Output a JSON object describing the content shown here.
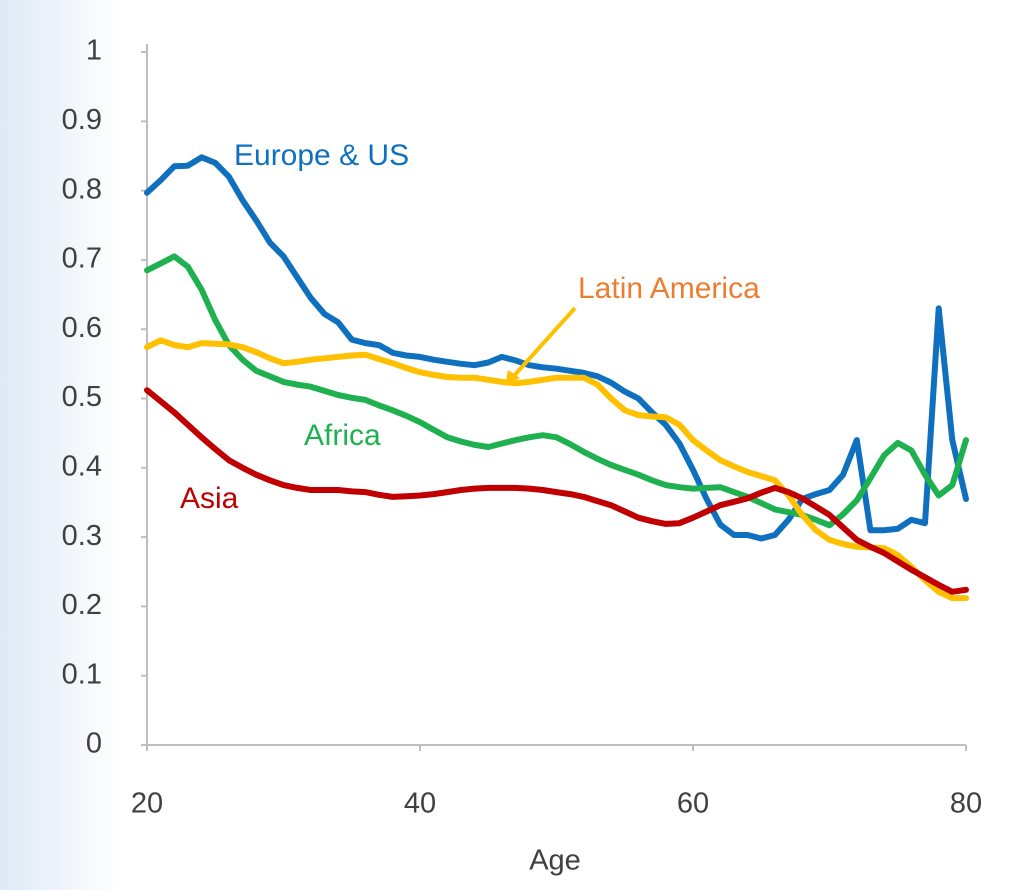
{
  "chart_data": {
    "type": "line",
    "x_label": "Age",
    "x": [
      20,
      21,
      22,
      23,
      24,
      25,
      26,
      27,
      28,
      29,
      30,
      31,
      32,
      33,
      34,
      35,
      36,
      37,
      38,
      39,
      40,
      41,
      42,
      43,
      44,
      45,
      46,
      47,
      48,
      49,
      50,
      51,
      52,
      53,
      54,
      55,
      56,
      57,
      58,
      59,
      60,
      61,
      62,
      63,
      64,
      65,
      66,
      67,
      68,
      69,
      70,
      71,
      72,
      73,
      74,
      75,
      76,
      77,
      78,
      79,
      80
    ],
    "xlim": [
      20,
      80
    ],
    "xticks": [
      20,
      40,
      60,
      80
    ],
    "ylim": [
      0,
      1
    ],
    "yticks": [
      0,
      0.1,
      0.2,
      0.3,
      0.4,
      0.5,
      0.6,
      0.7,
      0.8,
      0.9,
      1
    ],
    "series": [
      {
        "name": "Europe & US",
        "color": "#0f70c0",
        "values": [
          0.797,
          0.815,
          0.835,
          0.836,
          0.848,
          0.84,
          0.82,
          0.786,
          0.757,
          0.725,
          0.705,
          0.675,
          0.645,
          0.622,
          0.61,
          0.585,
          0.58,
          0.577,
          0.566,
          0.562,
          0.56,
          0.556,
          0.553,
          0.55,
          0.548,
          0.552,
          0.56,
          0.555,
          0.548,
          0.545,
          0.543,
          0.54,
          0.537,
          0.532,
          0.523,
          0.51,
          0.5,
          0.48,
          0.462,
          0.435,
          0.397,
          0.355,
          0.318,
          0.303,
          0.303,
          0.298,
          0.303,
          0.325,
          0.355,
          0.362,
          0.368,
          0.39,
          0.44,
          0.31,
          0.31,
          0.312,
          0.325,
          0.32,
          0.63,
          0.44,
          0.355
        ]
      },
      {
        "name": "Africa",
        "color": "#1fb150",
        "values": [
          0.685,
          0.695,
          0.705,
          0.69,
          0.657,
          0.613,
          0.577,
          0.556,
          0.54,
          0.532,
          0.524,
          0.52,
          0.517,
          0.511,
          0.505,
          0.501,
          0.498,
          0.49,
          0.483,
          0.475,
          0.466,
          0.455,
          0.444,
          0.438,
          0.433,
          0.43,
          0.435,
          0.44,
          0.444,
          0.447,
          0.444,
          0.434,
          0.423,
          0.413,
          0.404,
          0.397,
          0.39,
          0.382,
          0.375,
          0.372,
          0.37,
          0.371,
          0.372,
          0.365,
          0.358,
          0.349,
          0.34,
          0.336,
          0.332,
          0.325,
          0.317,
          0.333,
          0.353,
          0.385,
          0.418,
          0.436,
          0.425,
          0.39,
          0.36,
          0.375,
          0.44
        ]
      },
      {
        "name": "Latin America",
        "color": "#ffc000",
        "label_color": "#ed7d31",
        "values": [
          0.574,
          0.584,
          0.577,
          0.574,
          0.58,
          0.579,
          0.578,
          0.574,
          0.567,
          0.558,
          0.551,
          0.553,
          0.556,
          0.558,
          0.56,
          0.562,
          0.563,
          0.557,
          0.551,
          0.544,
          0.538,
          0.534,
          0.531,
          0.53,
          0.53,
          0.527,
          0.524,
          0.522,
          0.524,
          0.527,
          0.53,
          0.53,
          0.53,
          0.52,
          0.5,
          0.483,
          0.476,
          0.474,
          0.473,
          0.462,
          0.44,
          0.425,
          0.411,
          0.402,
          0.394,
          0.388,
          0.382,
          0.36,
          0.332,
          0.31,
          0.296,
          0.29,
          0.286,
          0.285,
          0.284,
          0.274,
          0.257,
          0.238,
          0.221,
          0.212,
          0.212
        ]
      },
      {
        "name": "Asia",
        "color": "#c00000",
        "values": [
          0.512,
          0.496,
          0.48,
          0.462,
          0.444,
          0.427,
          0.411,
          0.4,
          0.39,
          0.382,
          0.375,
          0.371,
          0.368,
          0.368,
          0.368,
          0.366,
          0.365,
          0.361,
          0.358,
          0.359,
          0.36,
          0.362,
          0.365,
          0.368,
          0.37,
          0.371,
          0.371,
          0.371,
          0.37,
          0.368,
          0.365,
          0.362,
          0.358,
          0.352,
          0.346,
          0.337,
          0.328,
          0.323,
          0.319,
          0.32,
          0.328,
          0.337,
          0.346,
          0.351,
          0.356,
          0.364,
          0.371,
          0.365,
          0.356,
          0.344,
          0.332,
          0.314,
          0.296,
          0.286,
          0.277,
          0.265,
          0.253,
          0.242,
          0.231,
          0.221,
          0.224
        ]
      }
    ]
  }
}
